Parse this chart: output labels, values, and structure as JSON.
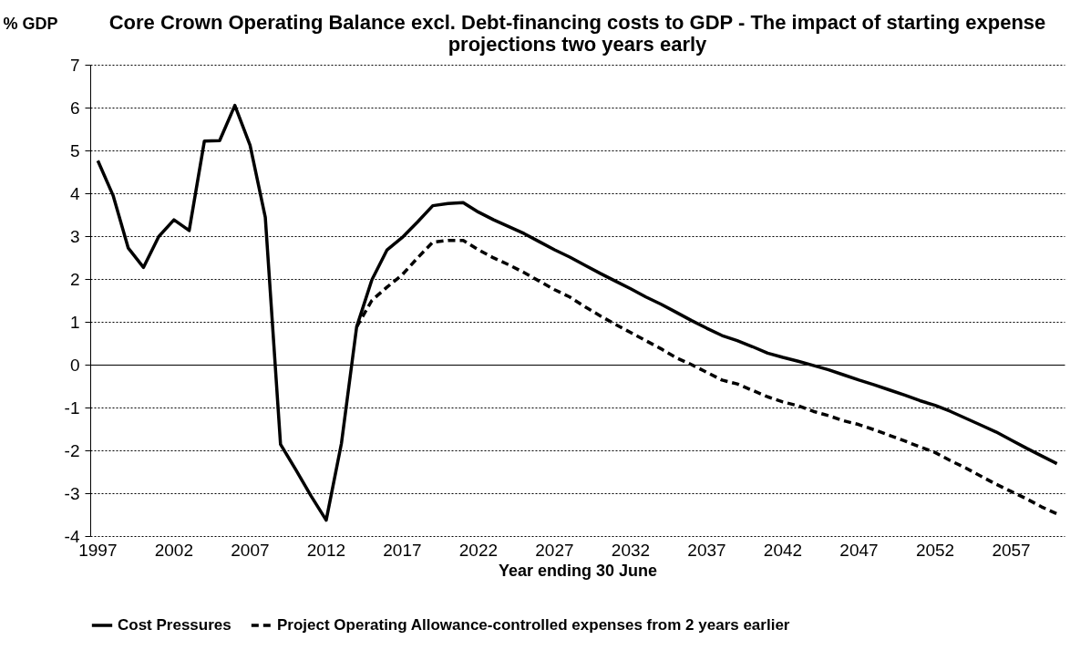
{
  "chart_data": {
    "type": "line",
    "title": "Core Crown Operating Balance excl. Debt-financing costs to GDP - The impact of starting expense projections two years early",
    "xlabel": "Year ending 30 June",
    "ylabel": "% GDP",
    "categories": [
      "1997",
      null,
      null,
      null,
      null,
      "2002",
      null,
      null,
      null,
      null,
      "2007",
      null,
      null,
      null,
      null,
      "2012",
      null,
      null,
      null,
      null,
      "2017",
      null,
      null,
      null,
      null,
      "2022",
      null,
      null,
      null,
      null,
      "2027",
      null,
      null,
      null,
      null,
      "2032",
      null,
      null,
      null,
      null,
      "2037",
      null,
      null,
      null,
      null,
      "2042",
      null,
      null,
      null,
      null,
      "2047",
      null,
      null,
      null,
      null,
      "2052",
      null,
      null,
      null,
      null,
      "2057",
      null,
      null,
      null
    ],
    "series": [
      {
        "name": "Cost Pressures",
        "color": "#000000",
        "line_style": "solid",
        "values": [
          4.76,
          3.95,
          2.72,
          2.27,
          2.99,
          3.38,
          3.13,
          5.22,
          5.23,
          6.05,
          5.12,
          3.44,
          -1.86,
          -2.45,
          -3.06,
          -3.63,
          -1.84,
          0.88,
          1.98,
          2.68,
          2.97,
          3.33,
          3.71,
          3.76,
          3.78,
          3.56,
          3.38,
          3.22,
          3.06,
          2.87,
          2.68,
          2.51,
          2.32,
          2.13,
          1.95,
          1.77,
          1.58,
          1.41,
          1.22,
          1.03,
          0.85,
          0.68,
          0.56,
          0.42,
          0.27,
          0.17,
          0.08,
          -0.02,
          -0.12,
          -0.24,
          -0.36,
          -0.47,
          -0.59,
          -0.71,
          -0.84,
          -0.95,
          -1.09,
          -1.25,
          -1.41,
          -1.57,
          -1.76,
          -1.95,
          -2.13,
          -2.31
        ]
      },
      {
        "name": "Project Operating Allowance-controlled expenses from 2 years earlier",
        "color": "#000000",
        "line_style": "dashed",
        "values": [
          null,
          null,
          null,
          null,
          null,
          null,
          null,
          null,
          null,
          null,
          null,
          null,
          null,
          null,
          null,
          null,
          null,
          0.88,
          1.5,
          1.81,
          2.1,
          2.49,
          2.86,
          2.9,
          2.9,
          2.68,
          2.49,
          2.33,
          2.15,
          1.95,
          1.75,
          1.58,
          1.35,
          1.14,
          0.94,
          0.75,
          0.56,
          0.37,
          0.16,
          0.0,
          -0.18,
          -0.36,
          -0.45,
          -0.6,
          -0.75,
          -0.87,
          -0.96,
          -1.09,
          -1.19,
          -1.31,
          -1.4,
          -1.52,
          -1.65,
          -1.78,
          -1.92,
          -2.05,
          -2.24,
          -2.41,
          -2.6,
          -2.79,
          -2.96,
          -3.13,
          -3.32,
          -3.48
        ]
      }
    ],
    "ylim": [
      -4,
      7
    ],
    "yticks": [
      -4,
      -3,
      -2,
      -1,
      0,
      1,
      2,
      3,
      4,
      5,
      6,
      7
    ],
    "grid": "y",
    "legend": "bottom"
  }
}
